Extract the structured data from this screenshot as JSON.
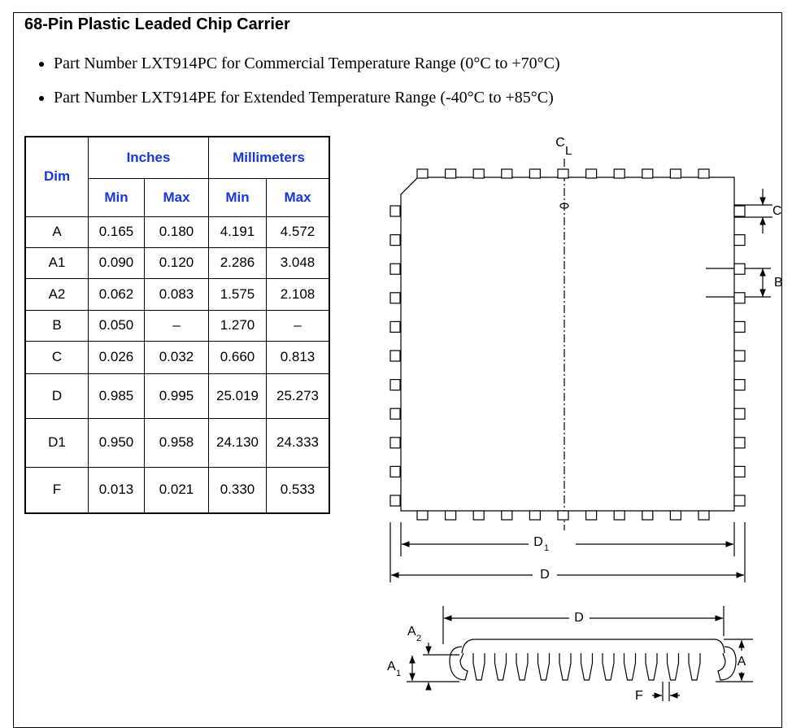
{
  "title": "68-Pin Plastic Leaded Chip Carrier",
  "bullets": [
    "Part Number LXT914PC for Commercial Temperature Range (0°C to +70°C)",
    "Part Number LXT914PE for Extended Temperature Range (-40°C to +85°C)"
  ],
  "table": {
    "header": [
      [
        "Dim",
        "Inches",
        "Millimeters"
      ],
      [
        "Min",
        "Max",
        "Min",
        "Max"
      ]
    ],
    "rows": [
      [
        "A",
        "0.165",
        "0.180",
        "4.191",
        "4.572"
      ],
      [
        "A1",
        "0.090",
        "0.120",
        "2.286",
        "3.048"
      ],
      [
        "A2",
        "0.062",
        "0.083",
        "1.575",
        "2.108"
      ],
      [
        "B",
        "0.050",
        "–",
        "1.270",
        "–"
      ],
      [
        "C",
        "0.026",
        "0.032",
        "0.660",
        "0.813"
      ],
      [
        "D",
        "0.985",
        "0.995",
        "25.019",
        "25.273"
      ],
      [
        "D1",
        "0.950",
        "0.958",
        "24.130",
        "24.333"
      ],
      [
        "F",
        "0.013",
        "0.021",
        "0.330",
        "0.533"
      ]
    ]
  },
  "diagram": {
    "centerline": {
      "text": "C",
      "sub": "L"
    },
    "dim_c": "C",
    "dim_b": "B",
    "dim_d1": {
      "text": "D",
      "sub": "1"
    },
    "dim_d_top": "D",
    "dim_d_side": "D",
    "dim_a2": {
      "text": "A",
      "sub": "2"
    },
    "dim_a1": {
      "text": "A",
      "sub": "1"
    },
    "dim_a": "A",
    "dim_f": "F"
  }
}
